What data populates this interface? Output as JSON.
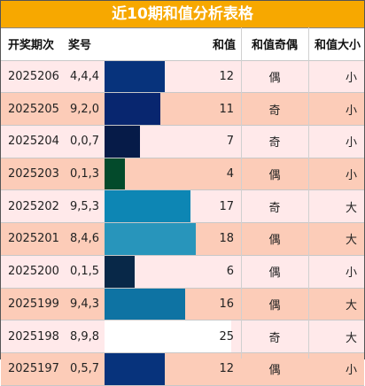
{
  "title": "近10期和值分析表格",
  "headers": {
    "issue": "开奖期次",
    "numbers": "奖号",
    "sum": "和值",
    "parity": "和值奇偶",
    "size": "和值大小"
  },
  "row_colors": {
    "even": "#ffe9ea",
    "odd": "#fcccb8"
  },
  "max_sum": 27,
  "rows": [
    {
      "issue": "2025206",
      "numbers": "4,4,4",
      "sum": "12",
      "parity": "偶",
      "size": "小",
      "bar_color": "#07337c"
    },
    {
      "issue": "2025205",
      "numbers": "9,2,0",
      "sum": "11",
      "parity": "奇",
      "size": "小",
      "bar_color": "#08266f"
    },
    {
      "issue": "2025204",
      "numbers": "0,0,7",
      "sum": "7",
      "parity": "奇",
      "size": "小",
      "bar_color": "#061b48"
    },
    {
      "issue": "2025203",
      "numbers": "0,1,3",
      "sum": "4",
      "parity": "偶",
      "size": "小",
      "bar_color": "#034a2b"
    },
    {
      "issue": "2025202",
      "numbers": "9,5,3",
      "sum": "17",
      "parity": "奇",
      "size": "大",
      "bar_color": "#0d86b4"
    },
    {
      "issue": "2025201",
      "numbers": "8,4,6",
      "sum": "18",
      "parity": "偶",
      "size": "大",
      "bar_color": "#2895bb"
    },
    {
      "issue": "2025200",
      "numbers": "0,1,5",
      "sum": "6",
      "parity": "偶",
      "size": "小",
      "bar_color": "#082848"
    },
    {
      "issue": "2025199",
      "numbers": "9,4,3",
      "sum": "16",
      "parity": "偶",
      "size": "大",
      "bar_color": "#0e73a3"
    },
    {
      "issue": "2025198",
      "numbers": "8,9,8",
      "sum": "25",
      "parity": "奇",
      "size": "大",
      "bar_color": "#ffffff"
    },
    {
      "issue": "2025197",
      "numbers": "0,5,7",
      "sum": "12",
      "parity": "偶",
      "size": "小",
      "bar_color": "#07337c"
    }
  ]
}
